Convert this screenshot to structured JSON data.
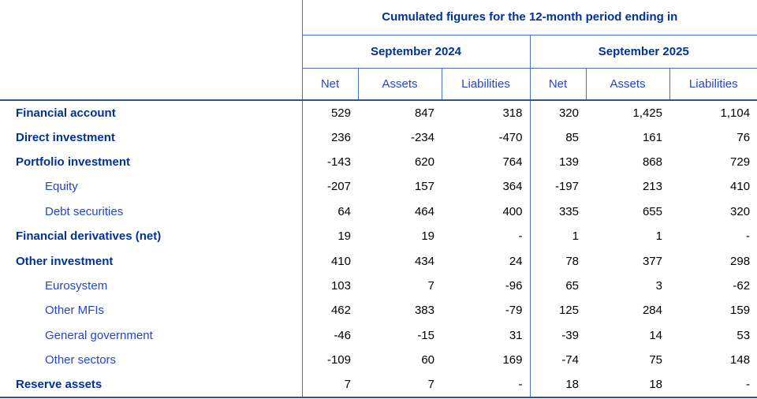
{
  "table": {
    "title": "Cumulated figures for the 12-month period ending in",
    "periods": [
      "September 2024",
      "September 2025"
    ],
    "measure_headers": [
      "Net",
      "Assets",
      "Liabilities"
    ],
    "rows": [
      {
        "label": "Financial account",
        "indent": false,
        "values": [
          "529",
          "847",
          "318",
          "320",
          "1,425",
          "1,104"
        ]
      },
      {
        "label": "Direct investment",
        "indent": false,
        "values": [
          "236",
          "-234",
          "-470",
          "85",
          "161",
          "76"
        ]
      },
      {
        "label": "Portfolio investment",
        "indent": false,
        "values": [
          "-143",
          "620",
          "764",
          "139",
          "868",
          "729"
        ]
      },
      {
        "label": "Equity",
        "indent": true,
        "values": [
          "-207",
          "157",
          "364",
          "-197",
          "213",
          "410"
        ]
      },
      {
        "label": "Debt securities",
        "indent": true,
        "values": [
          "64",
          "464",
          "400",
          "335",
          "655",
          "320"
        ]
      },
      {
        "label": "Financial derivatives (net)",
        "indent": false,
        "values": [
          "19",
          "19",
          "-",
          "1",
          "1",
          "-"
        ]
      },
      {
        "label": "Other investment",
        "indent": false,
        "values": [
          "410",
          "434",
          "24",
          "78",
          "377",
          "298"
        ]
      },
      {
        "label": "Eurosystem",
        "indent": true,
        "values": [
          "103",
          "7",
          "-96",
          "65",
          "3",
          "-62"
        ]
      },
      {
        "label": "Other MFIs",
        "indent": true,
        "values": [
          "462",
          "383",
          "-79",
          "125",
          "284",
          "159"
        ]
      },
      {
        "label": "General government",
        "indent": true,
        "values": [
          "-46",
          "-15",
          "31",
          "-39",
          "14",
          "53"
        ]
      },
      {
        "label": "Other sectors",
        "indent": true,
        "values": [
          "-109",
          "60",
          "169",
          "-74",
          "75",
          "148"
        ]
      },
      {
        "label": "Reserve assets",
        "indent": false,
        "values": [
          "7",
          "7",
          "-",
          "18",
          "18",
          "-"
        ]
      }
    ],
    "colors": {
      "title_text": "#003299",
      "subheader_text": "#2447C6",
      "number_text": "#000000",
      "thin_border": "#4472C4",
      "thick_border": "#2F5496"
    }
  }
}
